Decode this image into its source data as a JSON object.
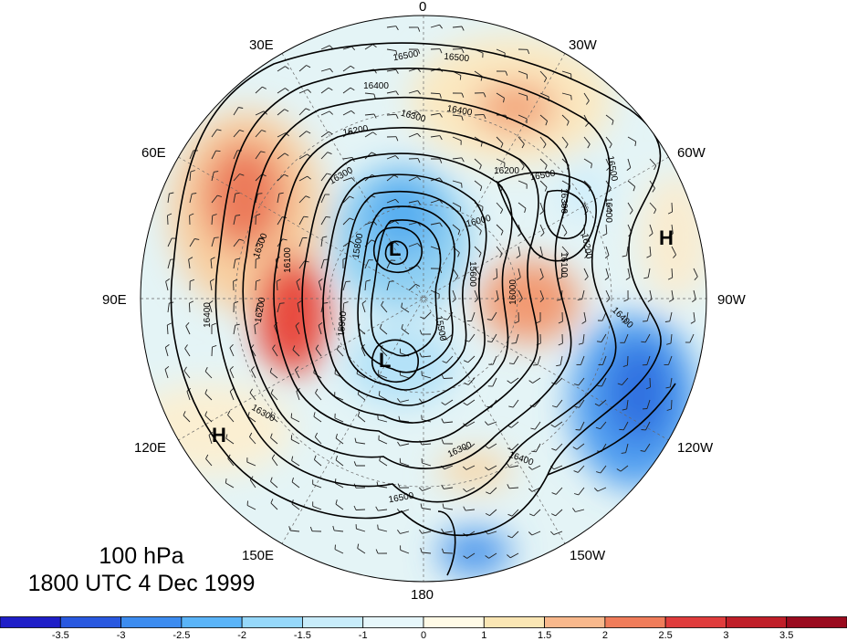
{
  "title": {
    "level": "100 hPa",
    "time": "1800 UTC 4 Dec 1999"
  },
  "longitude_labels": {
    "lon_0": "0",
    "lon_30w": "30W",
    "lon_60w": "60W",
    "lon_90w": "90W",
    "lon_120w": "120W",
    "lon_150w": "150W",
    "lon_180": "180",
    "lon_150e": "150E",
    "lon_120e": "120E",
    "lon_90e": "90E",
    "lon_60e": "60E",
    "lon_30e": "30E"
  },
  "pressure_centers": {
    "low_1": "L",
    "low_2": "L",
    "high_1": "H",
    "high_2": "H"
  },
  "contour_labels": [
    "16500",
    "16500",
    "16400",
    "16400",
    "16300",
    "16200",
    "16300",
    "16000",
    "16200",
    "16400",
    "16500",
    "16300",
    "16100",
    "16200",
    "15800",
    "15900",
    "15500",
    "15600",
    "16000",
    "16100",
    "16200",
    "16300",
    "16400",
    "16500",
    "16400",
    "16300",
    "16400",
    "16500",
    "16300"
  ],
  "colorbar": {
    "ticks": [
      "-3.5",
      "-3",
      "-2.5",
      "-2",
      "-1.5",
      "-1",
      "0",
      "1",
      "1.5",
      "2",
      "2.5",
      "3",
      "3.5"
    ],
    "colors": [
      "#1e1ec8",
      "#2858e0",
      "#3c8cf0",
      "#5ab4f8",
      "#96d8fa",
      "#c8ecfa",
      "#e6f6fa",
      "#fffae6",
      "#fae6b4",
      "#f8b88c",
      "#f07c5a",
      "#e03c3c",
      "#c01e28",
      "#9a0a1e"
    ]
  }
}
